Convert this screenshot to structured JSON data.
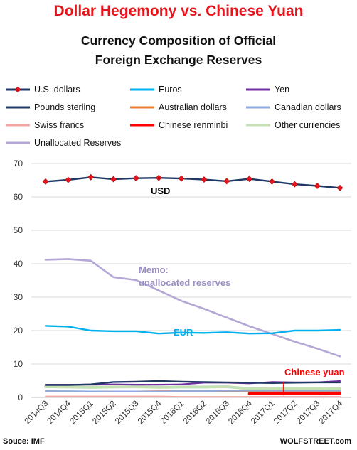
{
  "title": "Dollar Hegemony vs. Chinese Yuan",
  "subtitle_line1": "Currency Composition of Official",
  "subtitle_line2": "Foreign Exchange Reserves",
  "source": "Souce: IMF",
  "credit": "WOLFSTREET.com",
  "chart_data": {
    "type": "line",
    "title": "Dollar Hegemony vs. Chinese Yuan",
    "subtitle": "Currency Composition of Official Foreign Exchange Reserves",
    "xlabel": "",
    "ylabel": "",
    "ylim": [
      0,
      70
    ],
    "yticks": [
      0,
      10,
      20,
      30,
      40,
      50,
      60,
      70
    ],
    "grid": true,
    "legend_position": "top",
    "x": [
      "2014Q3",
      "2014Q4",
      "2015Q1",
      "2015Q2",
      "2015Q3",
      "2015Q4",
      "2016Q1",
      "2016Q2",
      "2016Q3",
      "2016Q4",
      "2017Q1",
      "2017Q2",
      "2017Q3",
      "2017Q4"
    ],
    "series": [
      {
        "name": "U.S. dollars",
        "color": "#1f3864",
        "marker": "diamond-red",
        "values": [
          64.6,
          65.1,
          65.9,
          65.3,
          65.6,
          65.7,
          65.5,
          65.2,
          64.7,
          65.4,
          64.6,
          63.8,
          63.3,
          62.7
        ]
      },
      {
        "name": "Euros",
        "color": "#00b0f0",
        "values": [
          21.4,
          21.2,
          20.0,
          19.8,
          19.8,
          19.1,
          19.4,
          19.3,
          19.5,
          19.1,
          19.2,
          20.0,
          20.0,
          20.2
        ]
      },
      {
        "name": "Yen",
        "color": "#7030a0",
        "values": [
          3.8,
          3.8,
          3.8,
          3.9,
          3.8,
          3.8,
          3.9,
          4.4,
          4.4,
          4.2,
          4.6,
          4.5,
          4.5,
          4.9
        ]
      },
      {
        "name": "Pounds sterling",
        "color": "#1f3864",
        "values": [
          3.7,
          3.7,
          3.9,
          4.6,
          4.7,
          4.9,
          4.7,
          4.6,
          4.5,
          4.4,
          4.3,
          4.4,
          4.5,
          4.5
        ]
      },
      {
        "name": "Australian dollars",
        "color": "#ed7d31",
        "values": [
          1.9,
          1.8,
          1.8,
          1.8,
          1.8,
          1.9,
          1.9,
          1.9,
          1.9,
          1.7,
          1.8,
          1.8,
          1.8,
          1.7
        ]
      },
      {
        "name": "Canadian dollars",
        "color": "#8faadc",
        "values": [
          1.9,
          1.9,
          1.8,
          1.8,
          1.8,
          1.8,
          1.9,
          1.9,
          2.0,
          2.0,
          2.0,
          2.0,
          2.0,
          2.0
        ]
      },
      {
        "name": "Swiss francs",
        "color": "#f4a7a3",
        "values": [
          0.3,
          0.3,
          0.3,
          0.3,
          0.3,
          0.3,
          0.2,
          0.2,
          0.2,
          0.2,
          0.2,
          0.2,
          0.2,
          0.2
        ]
      },
      {
        "name": "Chinese renminbi",
        "color": "#ff0000",
        "values": [
          null,
          null,
          null,
          null,
          null,
          null,
          null,
          null,
          null,
          1.1,
          1.1,
          1.1,
          1.1,
          1.2
        ]
      },
      {
        "name": "Other currencies",
        "color": "#c5e0b4",
        "values": [
          3.2,
          3.1,
          3.0,
          3.1,
          3.2,
          3.0,
          3.1,
          3.1,
          3.2,
          2.6,
          2.7,
          2.7,
          2.7,
          2.6
        ]
      },
      {
        "name": "Unallocated Reserves",
        "color": "#b4a7d6",
        "values": [
          41.2,
          41.4,
          40.9,
          36.0,
          35.1,
          32.0,
          28.9,
          26.5,
          23.9,
          21.3,
          19.0,
          16.7,
          14.6,
          12.3
        ]
      }
    ],
    "annotations": [
      {
        "text": "USD",
        "color": "#000000"
      },
      {
        "text": "EUR",
        "color": "#00b0f0"
      },
      {
        "text": "Memo:",
        "color": "#9b8fc2"
      },
      {
        "text": "unallocated reserves",
        "color": "#9b8fc2"
      },
      {
        "text": "Chinese yuan",
        "color": "#ff0000"
      }
    ]
  }
}
